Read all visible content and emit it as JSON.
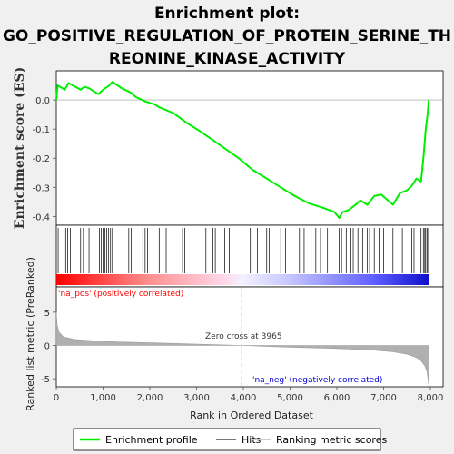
{
  "chart_data": {
    "type": "line",
    "title_lines": [
      "Enrichment plot:",
      "GO_POSITIVE_REGULATION_OF_PROTEIN_SERINE_TH",
      "REONINE_KINASE_ACTIVITY"
    ],
    "ylabel_top": "Enrichment score (ES)",
    "ylabel_bottom": "Ranked list metric (PreRanked)",
    "xlabel": "Rank in Ordered Dataset",
    "x_range": [
      0,
      8000
    ],
    "x_ticks": [
      "0",
      "1,000",
      "2,000",
      "3,000",
      "4,000",
      "5,000",
      "6,000",
      "7,000",
      "8,000"
    ],
    "es_ylim": [
      -0.43,
      0.1
    ],
    "es_ticks": [
      "0.0",
      "-0.1",
      "-0.2",
      "-0.3",
      "-0.4"
    ],
    "metric_ylim": [
      -6.2,
      8.8
    ],
    "metric_ticks": [
      "5",
      "0",
      "-5"
    ],
    "zero_cross_label": "Zero cross at 3965",
    "zero_cross_rank": 3965,
    "pos_label": "'na_pos' (positively correlated)",
    "neg_label": "'na_neg' (negatively correlated)",
    "colors": {
      "enrichment_line": "#00ee00",
      "pos_text": "#ff0000",
      "neg_text": "#0000cc",
      "background": "#f0f0f0",
      "metric_fill": "#b0b0b0"
    },
    "es_points": [
      [
        0,
        0.0
      ],
      [
        30,
        0.05
      ],
      [
        180,
        0.035
      ],
      [
        260,
        0.058
      ],
      [
        520,
        0.035
      ],
      [
        600,
        0.045
      ],
      [
        700,
        0.04
      ],
      [
        900,
        0.02
      ],
      [
        1000,
        0.035
      ],
      [
        1120,
        0.048
      ],
      [
        1200,
        0.062
      ],
      [
        1400,
        0.04
      ],
      [
        1600,
        0.025
      ],
      [
        1700,
        0.01
      ],
      [
        1900,
        -0.005
      ],
      [
        2100,
        -0.015
      ],
      [
        2200,
        -0.025
      ],
      [
        2500,
        -0.045
      ],
      [
        2800,
        -0.08
      ],
      [
        3100,
        -0.11
      ],
      [
        3500,
        -0.155
      ],
      [
        3900,
        -0.2
      ],
      [
        4200,
        -0.24
      ],
      [
        4500,
        -0.27
      ],
      [
        4800,
        -0.3
      ],
      [
        5100,
        -0.33
      ],
      [
        5400,
        -0.355
      ],
      [
        5700,
        -0.37
      ],
      [
        5950,
        -0.385
      ],
      [
        6050,
        -0.405
      ],
      [
        6120,
        -0.385
      ],
      [
        6250,
        -0.378
      ],
      [
        6400,
        -0.36
      ],
      [
        6500,
        -0.345
      ],
      [
        6650,
        -0.36
      ],
      [
        6800,
        -0.33
      ],
      [
        6950,
        -0.325
      ],
      [
        7200,
        -0.36
      ],
      [
        7350,
        -0.32
      ],
      [
        7500,
        -0.31
      ],
      [
        7600,
        -0.295
      ],
      [
        7700,
        -0.27
      ],
      [
        7800,
        -0.28
      ],
      [
        7850,
        -0.2
      ],
      [
        7900,
        -0.1
      ],
      [
        7940,
        -0.05
      ],
      [
        7965,
        0.0
      ]
    ],
    "hit_ranks": [
      40,
      200,
      240,
      300,
      520,
      580,
      700,
      920,
      960,
      1000,
      1040,
      1080,
      1120,
      1160,
      1200,
      1550,
      1600,
      1850,
      1900,
      1950,
      2200,
      2350,
      2700,
      2750,
      2900,
      3200,
      3350,
      3400,
      3600,
      3700,
      4150,
      4300,
      4400,
      4500,
      4550,
      4800,
      4900,
      5200,
      5300,
      5450,
      5550,
      5650,
      5800,
      6050,
      6100,
      6200,
      6300,
      6350,
      6450,
      6550,
      6650,
      6700,
      6800,
      6900,
      7000,
      7200,
      7400,
      7600,
      7650,
      7800,
      7850,
      7880,
      7900,
      7930,
      7960
    ],
    "metric_profile": [
      [
        0,
        5.0
      ],
      [
        20,
        3.0
      ],
      [
        60,
        2.0
      ],
      [
        150,
        1.3
      ],
      [
        400,
        0.9
      ],
      [
        1000,
        0.6
      ],
      [
        2000,
        0.4
      ],
      [
        3000,
        0.2
      ],
      [
        3965,
        0.0
      ],
      [
        5000,
        -0.25
      ],
      [
        6000,
        -0.45
      ],
      [
        6800,
        -0.7
      ],
      [
        7200,
        -0.95
      ],
      [
        7500,
        -1.3
      ],
      [
        7700,
        -1.8
      ],
      [
        7800,
        -2.3
      ],
      [
        7880,
        -3.0
      ],
      [
        7930,
        -4.0
      ],
      [
        7965,
        -6.0
      ]
    ]
  },
  "legend": {
    "items": [
      {
        "label": "Enrichment profile",
        "color": "#00ee00"
      },
      {
        "label": "Hits",
        "color": "#777777"
      },
      {
        "label": "Ranking metric scores",
        "color": "#cccccc"
      }
    ]
  }
}
